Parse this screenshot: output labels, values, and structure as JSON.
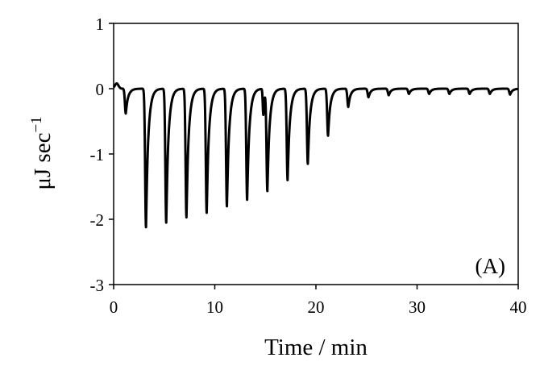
{
  "chart_data": {
    "type": "line",
    "title": "",
    "xlabel": "Time / min",
    "ylabel_main": "μJ sec",
    "ylabel_sup": "−1",
    "panel_label": "(A)",
    "xlim": [
      0,
      40
    ],
    "ylim": [
      -3,
      1
    ],
    "xticks": [
      0,
      10,
      20,
      30,
      40
    ],
    "xtick_labels": [
      "0",
      "10",
      "20",
      "30",
      "40"
    ],
    "yticks": [
      1,
      0,
      -1,
      -2,
      -3
    ],
    "ytick_labels": [
      "1",
      "0",
      "-1",
      "-2",
      "-3"
    ],
    "grid": false,
    "legend": "none",
    "line_color": "#000000",
    "baseline": 0.0,
    "series": [
      {
        "injections": [
          {
            "t": 1.2,
            "min": -0.38
          },
          {
            "t": 3.2,
            "min": -2.12
          },
          {
            "t": 5.2,
            "min": -2.05
          },
          {
            "t": 7.2,
            "min": -1.97
          },
          {
            "t": 9.2,
            "min": -1.9
          },
          {
            "t": 11.2,
            "min": -1.8
          },
          {
            "t": 13.2,
            "min": -1.7
          },
          {
            "t": 15.2,
            "min": -1.55
          },
          {
            "t": 17.2,
            "min": -1.4
          },
          {
            "t": 19.2,
            "min": -1.15
          },
          {
            "t": 21.2,
            "min": -0.72
          },
          {
            "t": 23.2,
            "min": -0.28
          },
          {
            "t": 25.2,
            "min": -0.13
          },
          {
            "t": 27.2,
            "min": -0.1
          },
          {
            "t": 29.2,
            "min": -0.08
          },
          {
            "t": 31.2,
            "min": -0.08
          },
          {
            "t": 33.2,
            "min": -0.08
          },
          {
            "t": 35.2,
            "min": -0.08
          },
          {
            "t": 37.2,
            "min": -0.08
          },
          {
            "t": 39.2,
            "min": -0.09
          }
        ],
        "extra_dips": [
          {
            "t": 14.8,
            "min": -0.4
          }
        ],
        "initial_bump": {
          "t": 0.3,
          "max": 0.08
        }
      }
    ]
  }
}
